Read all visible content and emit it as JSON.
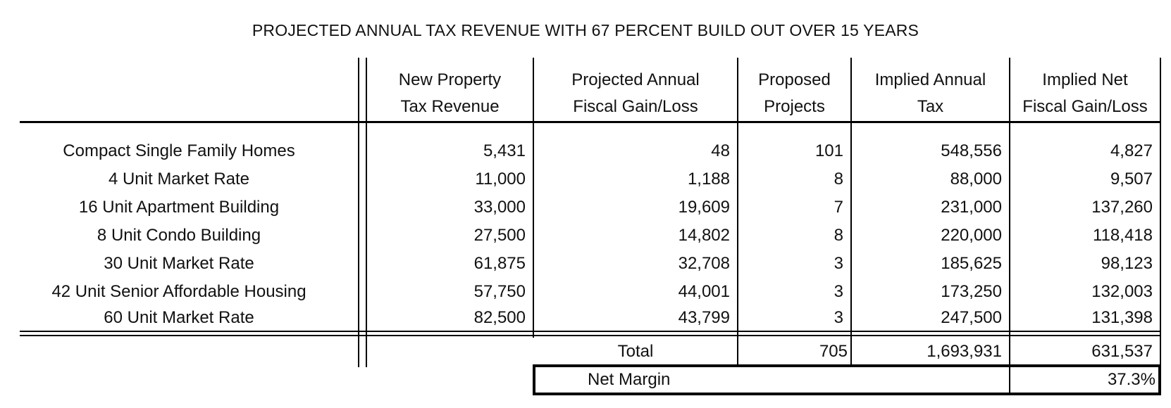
{
  "title": "PROJECTED ANNUAL TAX REVENUE WITH 67 PERCENT BUILD OUT OVER 15 YEARS",
  "columns": [
    {
      "line1": "New Property",
      "line2": "Tax Revenue"
    },
    {
      "line1": "Projected Annual",
      "line2": "Fiscal Gain/Loss"
    },
    {
      "line1": "Proposed",
      "line2": "Projects"
    },
    {
      "line1": "Implied Annual",
      "line2": "Tax"
    },
    {
      "line1": "Implied Net",
      "line2": "Fiscal Gain/Loss"
    }
  ],
  "rows": [
    {
      "label": "Compact Single Family Homes",
      "values": [
        "5,431",
        "48",
        "101",
        "548,556",
        "4,827"
      ]
    },
    {
      "label": "4 Unit Market Rate",
      "values": [
        "11,000",
        "1,188",
        "8",
        "88,000",
        "9,507"
      ]
    },
    {
      "label": "16 Unit Apartment Building",
      "values": [
        "33,000",
        "19,609",
        "7",
        "231,000",
        "137,260"
      ]
    },
    {
      "label": "8 Unit Condo Building",
      "values": [
        "27,500",
        "14,802",
        "8",
        "220,000",
        "118,418"
      ]
    },
    {
      "label": "30 Unit Market Rate",
      "values": [
        "61,875",
        "32,708",
        "3",
        "185,625",
        "98,123"
      ]
    },
    {
      "label": "42 Unit Senior Affordable Housing",
      "values": [
        "57,750",
        "44,001",
        "3",
        "173,250",
        "132,003"
      ]
    },
    {
      "label": "60 Unit Market Rate",
      "values": [
        "82,500",
        "43,799",
        "3",
        "247,500",
        "131,398"
      ]
    }
  ],
  "total": {
    "label": "Total",
    "projects": "705",
    "implied_tax": "1,693,931",
    "net_gain": "631,537"
  },
  "net_margin": {
    "label": "Net Margin",
    "value": "37.3%"
  }
}
